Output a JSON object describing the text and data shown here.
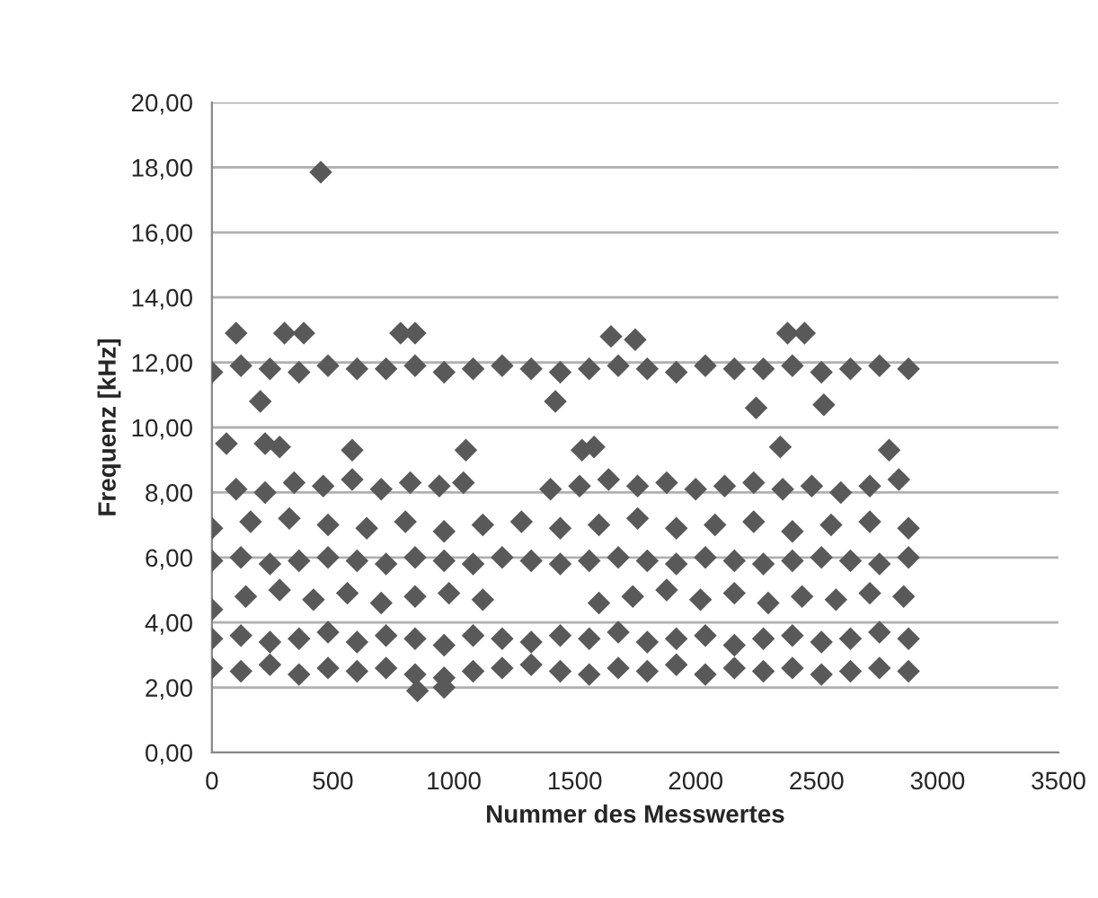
{
  "chart_data": {
    "type": "scatter",
    "xlabel": "Nummer des Messwertes",
    "ylabel": "Frequenz [kHz]",
    "xlim": [
      0,
      3500
    ],
    "xticks": [
      0,
      500,
      1000,
      1500,
      2000,
      2500,
      3000,
      3500
    ],
    "ylim": [
      0,
      20
    ],
    "yticks": [
      {
        "value": 0,
        "label": "0,00"
      },
      {
        "value": 2,
        "label": "2,00"
      },
      {
        "value": 4,
        "label": "4,00"
      },
      {
        "value": 6,
        "label": "6,00"
      },
      {
        "value": 8,
        "label": "8,00"
      },
      {
        "value": 10,
        "label": "10,00"
      },
      {
        "value": 12,
        "label": "12,00"
      },
      {
        "value": 14,
        "label": "14,00"
      },
      {
        "value": 16,
        "label": "16,00"
      },
      {
        "value": 18,
        "label": "18,00"
      },
      {
        "value": 20,
        "label": "20,00"
      }
    ],
    "grid": "y",
    "marker": "diamond",
    "series": [
      {
        "color": "#595959",
        "x": [
          0,
          120,
          240,
          360,
          480,
          600,
          720,
          840,
          960,
          1080,
          1200,
          1320,
          1440,
          1560,
          1680,
          1800,
          1920,
          2040,
          2160,
          2280,
          2400,
          2520,
          2640,
          2760,
          2880,
          100,
          220,
          340,
          460,
          580,
          700,
          820,
          940,
          1040,
          1400,
          1520,
          1640,
          1760,
          1880,
          2000,
          2120,
          2240,
          2360,
          2480,
          2600,
          2720,
          2840,
          0,
          160,
          320,
          480,
          640,
          800,
          960,
          1120,
          1280,
          1440,
          1600,
          1760,
          1920,
          2080,
          2240,
          2400,
          2560,
          2720,
          2880,
          0,
          120,
          240,
          360,
          480,
          600,
          720,
          840,
          960,
          1080,
          1200,
          1320,
          1440,
          1560,
          1680,
          1800,
          1920,
          2040,
          2160,
          2280,
          2400,
          2520,
          2640,
          2760,
          2880,
          0,
          140,
          280,
          420,
          560,
          700,
          840,
          980,
          1120,
          1600,
          1740,
          1880,
          2020,
          2160,
          2300,
          2440,
          2580,
          2720,
          2860,
          0,
          120,
          240,
          360,
          480,
          600,
          720,
          840,
          960,
          1080,
          1200,
          1320,
          1440,
          1560,
          1680,
          1800,
          1920,
          2040,
          2160,
          2280,
          2400,
          2520,
          2640,
          2760,
          2880,
          0,
          120,
          240,
          360,
          480,
          600,
          720,
          840,
          960,
          1080,
          1200,
          1320,
          1440,
          1560,
          1680,
          1800,
          1920,
          2040,
          2160,
          2280,
          2400,
          2520,
          2640,
          2760,
          2880,
          450,
          100,
          300,
          380,
          780,
          840,
          1650,
          1750,
          2380,
          2450,
          200,
          1420,
          2250,
          2530,
          60,
          220,
          280,
          580,
          1050,
          1530,
          1580,
          2350,
          2800,
          850,
          960
        ],
        "values": [
          11.7,
          11.9,
          11.8,
          11.7,
          11.9,
          11.8,
          11.8,
          11.9,
          11.7,
          11.8,
          11.9,
          11.8,
          11.7,
          11.8,
          11.9,
          11.8,
          11.7,
          11.9,
          11.8,
          11.8,
          11.9,
          11.7,
          11.8,
          11.9,
          11.8,
          8.1,
          8.0,
          8.3,
          8.2,
          8.4,
          8.1,
          8.3,
          8.2,
          8.3,
          8.1,
          8.2,
          8.4,
          8.2,
          8.3,
          8.1,
          8.2,
          8.3,
          8.1,
          8.2,
          8.0,
          8.2,
          8.4,
          6.9,
          7.1,
          7.2,
          7.0,
          6.9,
          7.1,
          6.8,
          7.0,
          7.1,
          6.9,
          7.0,
          7.2,
          6.9,
          7.0,
          7.1,
          6.8,
          7.0,
          7.1,
          6.9,
          5.9,
          6.0,
          5.8,
          5.9,
          6.0,
          5.9,
          5.8,
          6.0,
          5.9,
          5.8,
          6.0,
          5.9,
          5.8,
          5.9,
          6.0,
          5.9,
          5.8,
          6.0,
          5.9,
          5.8,
          5.9,
          6.0,
          5.9,
          5.8,
          6.0,
          4.4,
          4.8,
          5.0,
          4.7,
          4.9,
          4.6,
          4.8,
          4.9,
          4.7,
          4.6,
          4.8,
          5.0,
          4.7,
          4.9,
          4.6,
          4.8,
          4.7,
          4.9,
          4.8,
          3.5,
          3.6,
          3.4,
          3.5,
          3.7,
          3.4,
          3.6,
          3.5,
          3.3,
          3.6,
          3.5,
          3.4,
          3.6,
          3.5,
          3.7,
          3.4,
          3.5,
          3.6,
          3.3,
          3.5,
          3.6,
          3.4,
          3.5,
          3.7,
          3.5,
          2.6,
          2.5,
          2.7,
          2.4,
          2.6,
          2.5,
          2.6,
          2.4,
          2.3,
          2.5,
          2.6,
          2.7,
          2.5,
          2.4,
          2.6,
          2.5,
          2.7,
          2.4,
          2.6,
          2.5,
          2.6,
          2.4,
          2.5,
          2.6,
          2.5,
          17.85,
          12.9,
          12.9,
          12.9,
          12.9,
          12.9,
          12.8,
          12.7,
          12.9,
          12.9,
          10.8,
          10.8,
          10.6,
          10.7,
          9.5,
          9.5,
          9.4,
          9.3,
          9.3,
          9.3,
          9.4,
          9.4,
          9.3,
          1.9,
          2.0
        ]
      }
    ]
  }
}
